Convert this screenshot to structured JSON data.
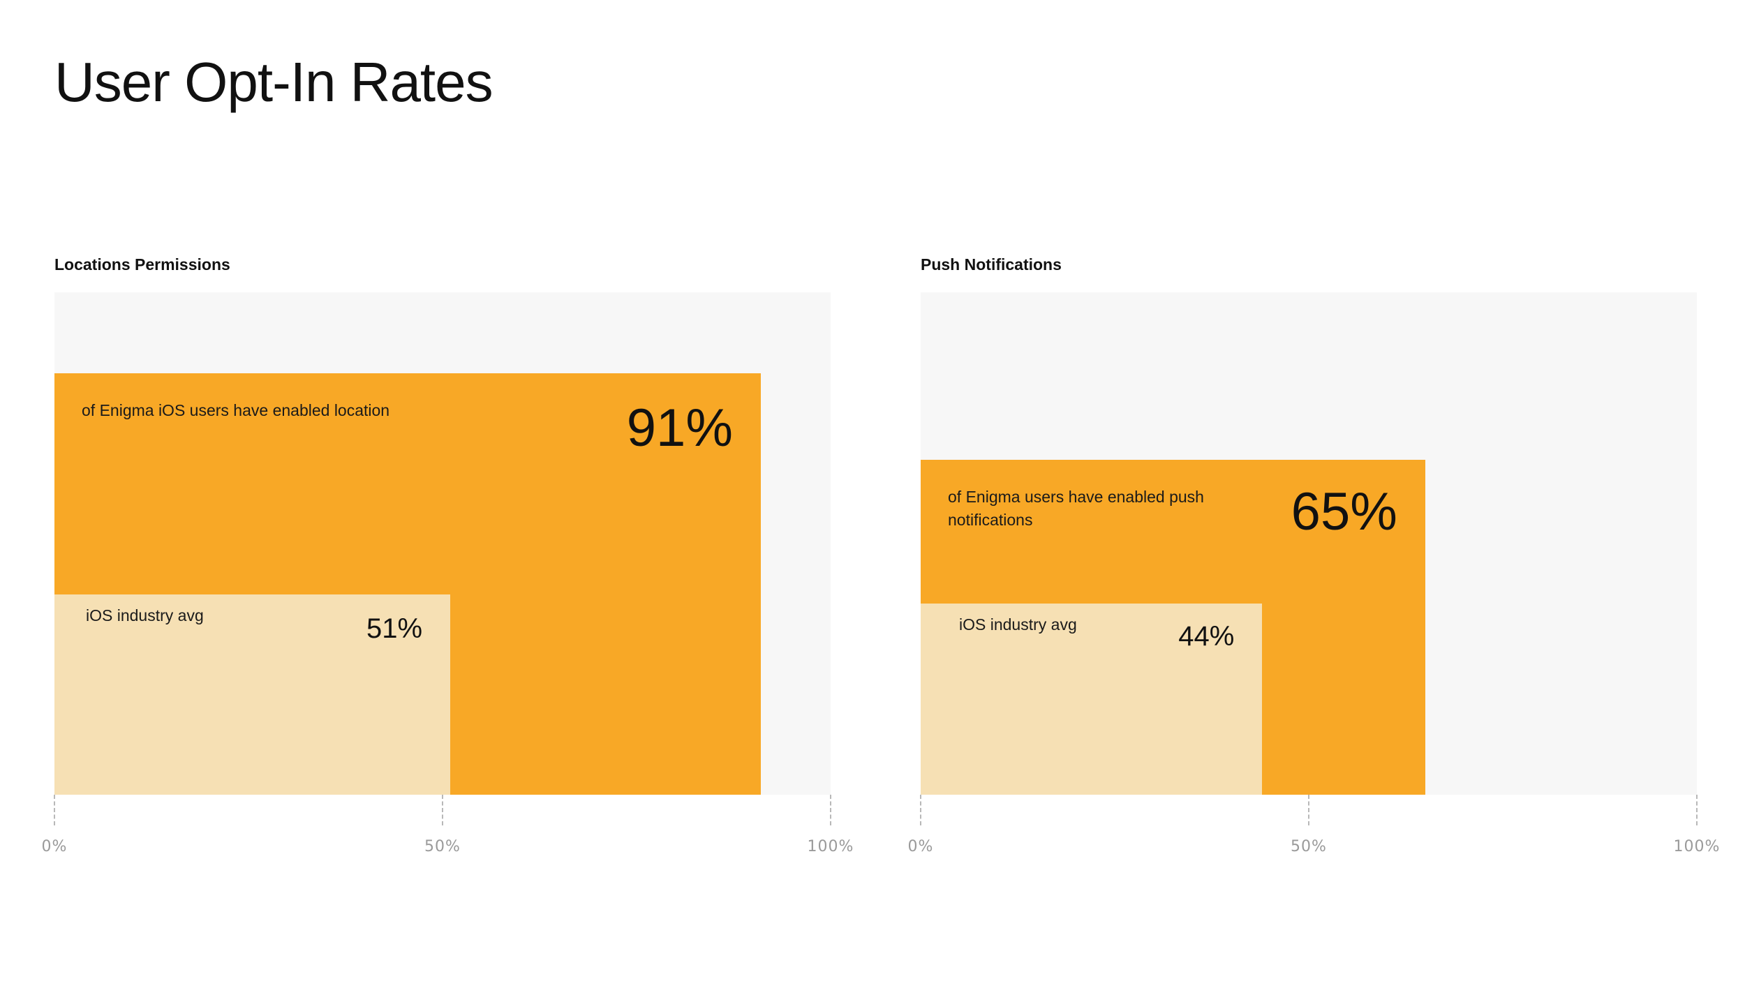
{
  "title": "User Opt-In Rates",
  "colors": {
    "primary": "#f8a826",
    "benchmark": "#f6e0b4",
    "plot_background": "#f7f7f7"
  },
  "chart_data": [
    {
      "type": "bar",
      "title": "Locations Permissions",
      "xlim": [
        0,
        100
      ],
      "x_ticks": [
        "0%",
        "50%",
        "100%"
      ],
      "series": [
        {
          "caption": "of Enigma iOS users have enabled location",
          "value": 91,
          "value_label": "91%"
        },
        {
          "caption": "iOS industry avg",
          "value": 51,
          "value_label": "51%"
        }
      ]
    },
    {
      "type": "bar",
      "title": "Push Notifications",
      "xlim": [
        0,
        100
      ],
      "x_ticks": [
        "0%",
        "50%",
        "100%"
      ],
      "series": [
        {
          "caption": "of Enigma users have enabled push notifications",
          "value": 65,
          "value_label": "65%"
        },
        {
          "caption": "iOS industry avg",
          "value": 44,
          "value_label": "44%"
        }
      ]
    }
  ]
}
